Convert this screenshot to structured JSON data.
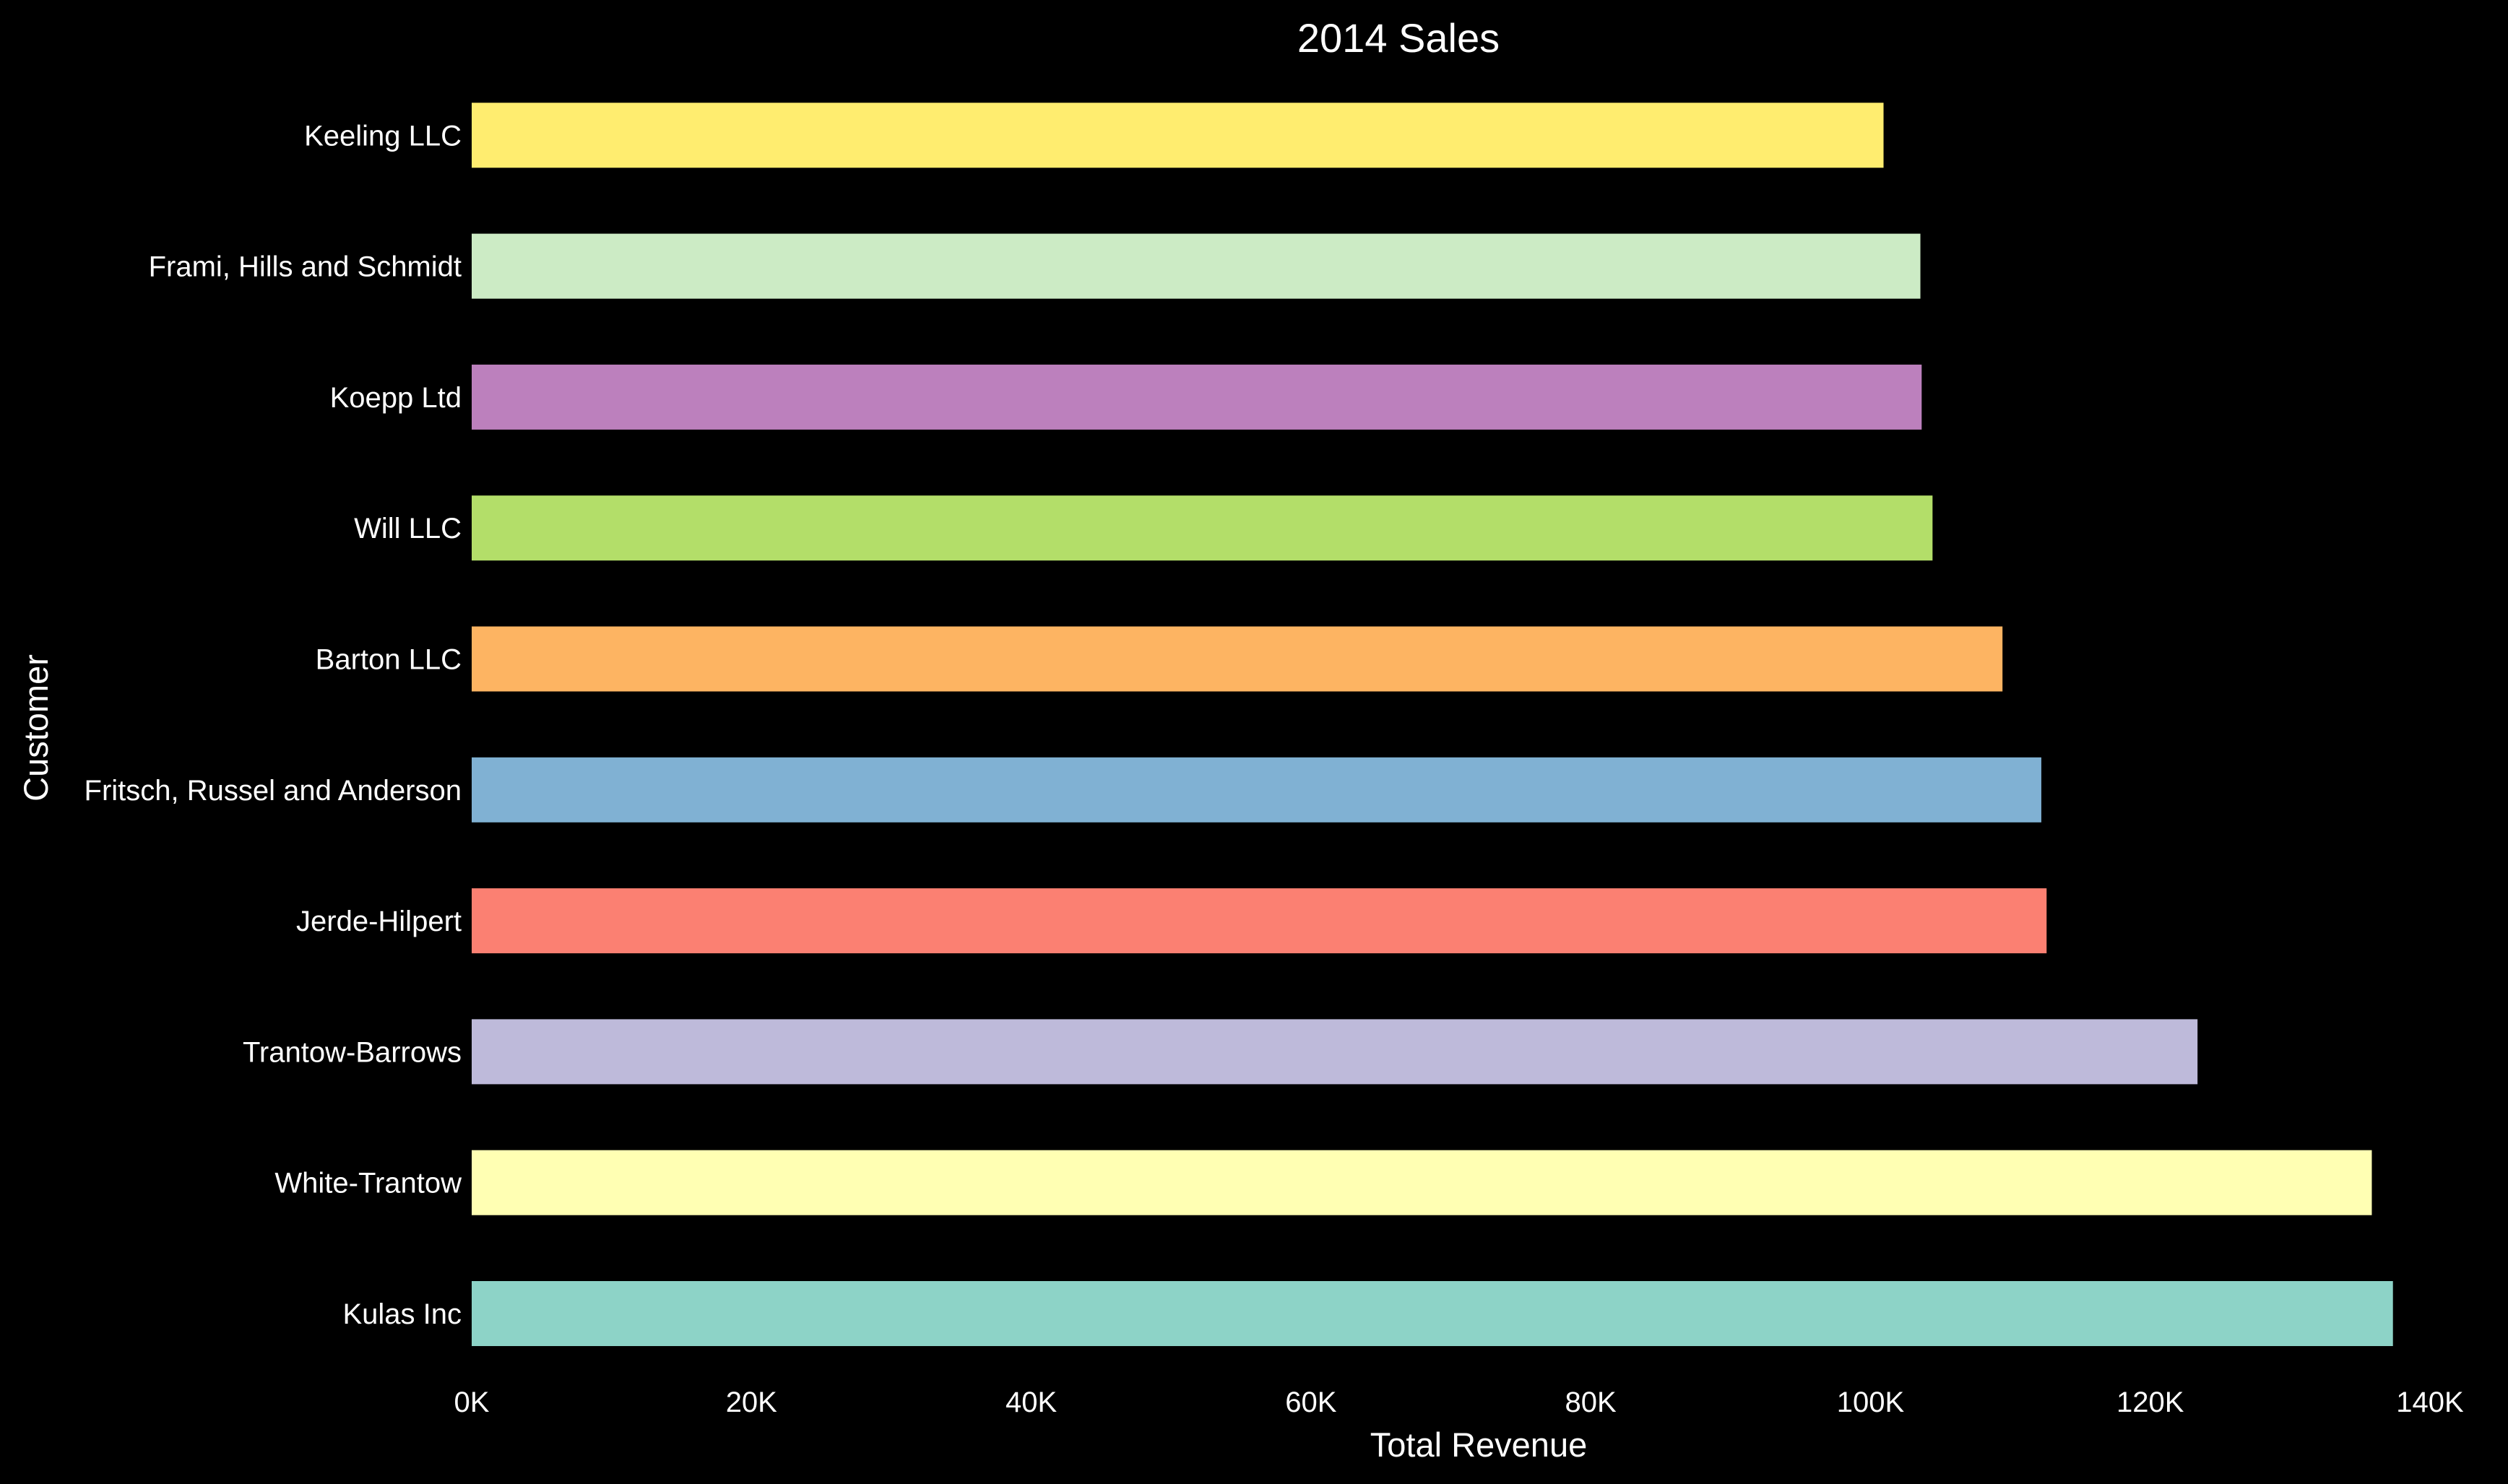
{
  "chart_data": {
    "type": "bar",
    "orientation": "horizontal",
    "title": "2014 Sales",
    "xlabel": "Total Revenue",
    "ylabel": "Customer",
    "xlim": [
      0,
      140000
    ],
    "x_ticks": [
      0,
      20000,
      40000,
      60000,
      80000,
      100000,
      120000,
      140000
    ],
    "x_tick_labels": [
      "0K",
      "20K",
      "40K",
      "60K",
      "80K",
      "100K",
      "120K",
      "140K"
    ],
    "grid": false,
    "legend": "none",
    "background": "#000000",
    "categories": [
      "Kulas Inc",
      "White-Trantow",
      "Trantow-Barrows",
      "Jerde-Hilpert",
      "Fritsch, Russel and Anderson",
      "Barton LLC",
      "Will LLC",
      "Koepp Ltd",
      "Frami, Hills and Schmidt",
      "Keeling LLC"
    ],
    "values": [
      137352,
      135841,
      123381,
      112591,
      112214,
      109438,
      104437,
      103660,
      103569,
      100934
    ],
    "colors": [
      "#8dd3c7",
      "#ffffb3",
      "#bebada",
      "#fb8072",
      "#80b1d3",
      "#fdb462",
      "#b3de69",
      "#bc80bd",
      "#ccebc5",
      "#ffed6f"
    ]
  }
}
